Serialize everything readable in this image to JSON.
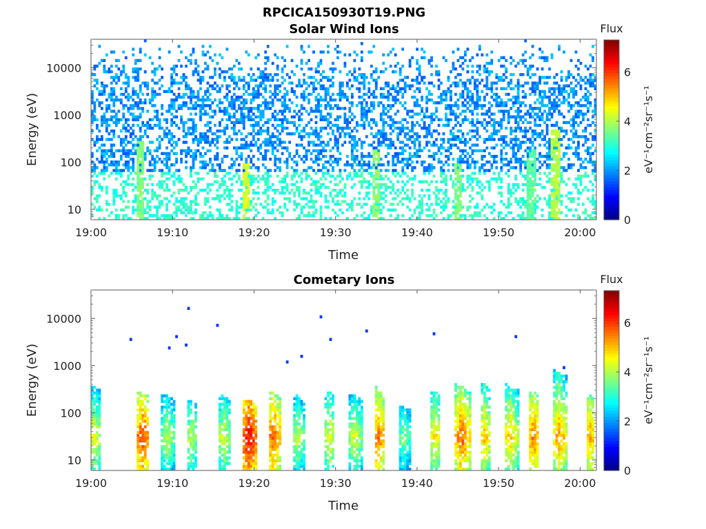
{
  "figure": {
    "title": "RPCICA150930T19.PNG"
  },
  "colorbar": {
    "label": "Flux",
    "units": "eV⁻¹cm⁻²sr⁻¹s⁻¹",
    "range": [
      0,
      7.3
    ],
    "ticks": [
      "0",
      "2",
      "4",
      "6"
    ],
    "colormap": "jet"
  },
  "chart_data": [
    {
      "type": "heatmap",
      "title": "Solar Wind Ions",
      "xlabel": "Time",
      "ylabel": "Energy (eV)",
      "x_ticks": [
        "19:00",
        "19:10",
        "19:20",
        "19:30",
        "19:40",
        "19:50",
        "20:00"
      ],
      "y_ticks": [
        "10",
        "100",
        "1000",
        "10000"
      ],
      "xlim": [
        "19:00",
        "20:02"
      ],
      "ylim": [
        6,
        40000
      ],
      "y_scale": "log",
      "description_values": {
        "low_energy_band_eV": [
          6,
          60
        ],
        "low_energy_flux": 3.2,
        "high_energy_band_eV": [
          60,
          30000
        ],
        "high_energy_flux": 1.8,
        "bursts": [
          {
            "time": "19:06",
            "eV_max": 300,
            "flux": 3.4
          },
          {
            "time": "19:19",
            "eV_max": 100,
            "flux": 4.0
          },
          {
            "time": "19:35",
            "eV_max": 200,
            "flux": 3.5
          },
          {
            "time": "19:45",
            "eV_max": 100,
            "flux": 3.4
          },
          {
            "time": "19:54",
            "eV_max": 200,
            "flux": 3.2
          },
          {
            "time": "19:57",
            "eV_max": 500,
            "flux": 3.8
          }
        ]
      }
    },
    {
      "type": "heatmap",
      "title": "Cometary Ions",
      "xlabel": "Time",
      "ylabel": "Energy (eV)",
      "x_ticks": [
        "19:00",
        "19:10",
        "19:20",
        "19:30",
        "19:40",
        "19:50",
        "20:00"
      ],
      "y_ticks": [
        "10",
        "100",
        "1000",
        "10000"
      ],
      "xlim": [
        "19:00",
        "20:02"
      ],
      "ylim": [
        6,
        40000
      ],
      "y_scale": "log",
      "bursts": [
        {
          "time": "19:00",
          "eV_max": 400,
          "peak": 4.6
        },
        {
          "time": "19:06",
          "eV_max": 300,
          "peak": 6.0
        },
        {
          "time": "19:09",
          "eV_max": 250,
          "peak": 4.2
        },
        {
          "time": "19:12",
          "eV_max": 200,
          "peak": 4.2
        },
        {
          "time": "19:16",
          "eV_max": 250,
          "peak": 4.4
        },
        {
          "time": "19:19",
          "eV_max": 200,
          "peak": 6.5
        },
        {
          "time": "19:22",
          "eV_max": 300,
          "peak": 5.8
        },
        {
          "time": "19:25",
          "eV_max": 250,
          "peak": 4.2
        },
        {
          "time": "19:29",
          "eV_max": 300,
          "peak": 4.6
        },
        {
          "time": "19:32",
          "eV_max": 250,
          "peak": 4.4
        },
        {
          "time": "19:35",
          "eV_max": 350,
          "peak": 5.6
        },
        {
          "time": "19:38",
          "eV_max": 150,
          "peak": 3.8
        },
        {
          "time": "19:42",
          "eV_max": 300,
          "peak": 4.8
        },
        {
          "time": "19:45",
          "eV_max": 400,
          "peak": 5.8
        },
        {
          "time": "19:48",
          "eV_max": 450,
          "peak": 5.0
        },
        {
          "time": "19:51",
          "eV_max": 400,
          "peak": 5.0
        },
        {
          "time": "19:54",
          "eV_max": 300,
          "peak": 5.6
        },
        {
          "time": "19:57",
          "eV_max": 800,
          "peak": 5.4
        },
        {
          "time": "20:01",
          "eV_max": 250,
          "peak": 5.2
        }
      ]
    }
  ]
}
